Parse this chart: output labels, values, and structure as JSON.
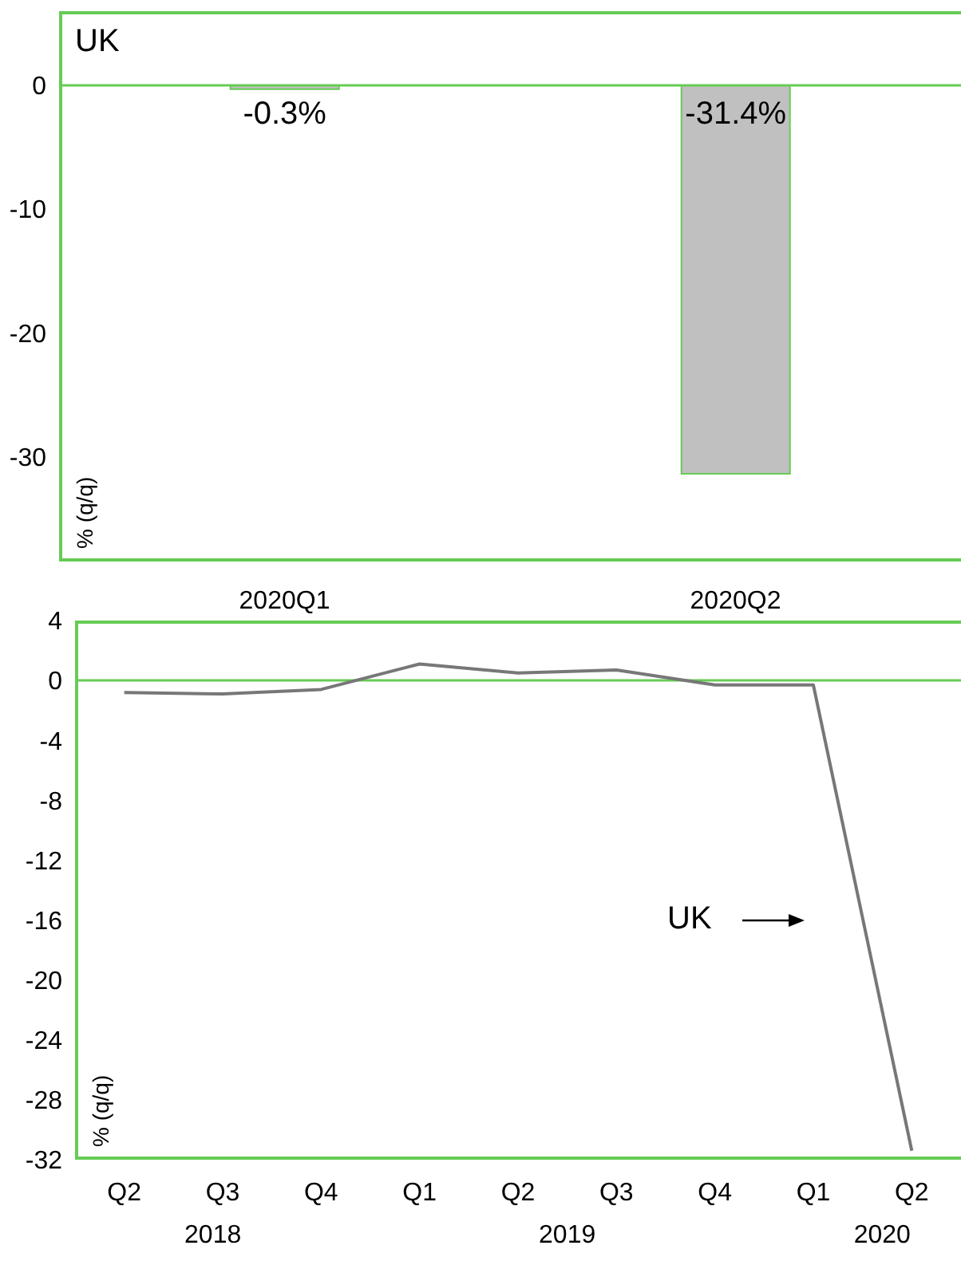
{
  "chart_data": [
    {
      "type": "bar",
      "title": "UK",
      "ylabel": "% (q/q)",
      "categories": [
        "2020Q1",
        "2020Q2"
      ],
      "series": [
        {
          "color": "#c0c0c0",
          "values": [
            -0.3,
            -31.4
          ],
          "value_labels": [
            "-0.3%",
            "-31.4%"
          ]
        }
      ],
      "ylim": [
        -38.5,
        6
      ],
      "yticks": [
        0,
        -10,
        -20,
        -30
      ],
      "grid": false,
      "legend": false,
      "ref_lines": [
        {
          "axis": "y",
          "value": 0,
          "color": "#66cc55"
        }
      ]
    },
    {
      "type": "line",
      "ylabel": "% (q/q)",
      "categories": [
        "Q2",
        "Q3",
        "Q4",
        "Q1",
        "Q2",
        "Q3",
        "Q4",
        "Q1",
        "Q2"
      ],
      "series": [
        {
          "color": "#777777",
          "values": [
            -0.8,
            -0.9,
            -0.6,
            1.1,
            0.5,
            0.7,
            -0.3,
            -0.3,
            -31.4
          ]
        }
      ],
      "ylim": [
        -32,
        4
      ],
      "yticks": [
        4,
        0,
        -4,
        -8,
        -12,
        -16,
        -20,
        -24,
        -28,
        -32
      ],
      "grid": false,
      "legend": false,
      "marker": "none",
      "ref_lines": [
        {
          "axis": "y",
          "value": 0,
          "color": "#66cc55"
        }
      ],
      "annotations": [
        "2018",
        "2019",
        "2020",
        "UK"
      ]
    }
  ]
}
